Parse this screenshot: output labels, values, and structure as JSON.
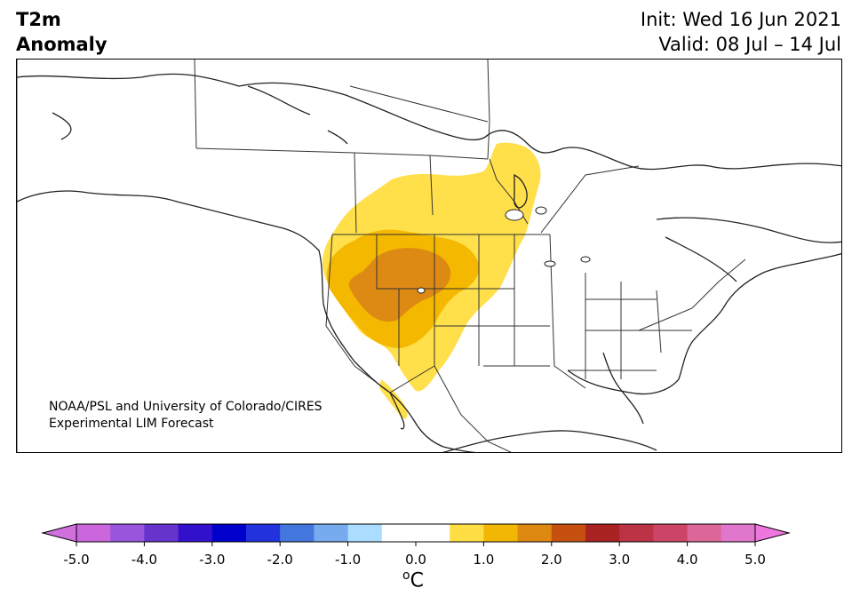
{
  "header": {
    "variable": "T2m",
    "field": "Anomaly",
    "init": "Init: Wed 16 Jun 2021",
    "valid": "Valid: 08 Jul – 14 Jul"
  },
  "credit": {
    "line1": "NOAA/PSL and University of Colorado/CIRES",
    "line2": "Experimental LIM Forecast"
  },
  "colorbar": {
    "unit_symbol": "o",
    "unit_letter": "C",
    "tick_labels": [
      "-5.0",
      "-4.0",
      "-3.0",
      "-2.0",
      "-1.0",
      "0.0",
      "1.0",
      "2.0",
      "3.0",
      "4.0",
      "5.0"
    ],
    "colors": [
      "#cc66dd",
      "#9955dd",
      "#6633cc",
      "#3311cc",
      "#0000cc",
      "#2233dd",
      "#4477dd",
      "#77aaee",
      "#aaddff",
      "#ffffff",
      "#ffffff",
      "#ffdd44",
      "#f2b705",
      "#dd8811",
      "#c55010",
      "#aa2222",
      "#bb3344",
      "#cc4466",
      "#dd6699",
      "#e077cc"
    ],
    "extend_low_color": "#d070dd",
    "extend_high_color": "#ee77dd"
  },
  "map": {
    "region": "North America",
    "anomaly_colors": {
      "light": "#ffdf4a",
      "mid": "#f5b800",
      "strong": "#dd8a14"
    }
  }
}
